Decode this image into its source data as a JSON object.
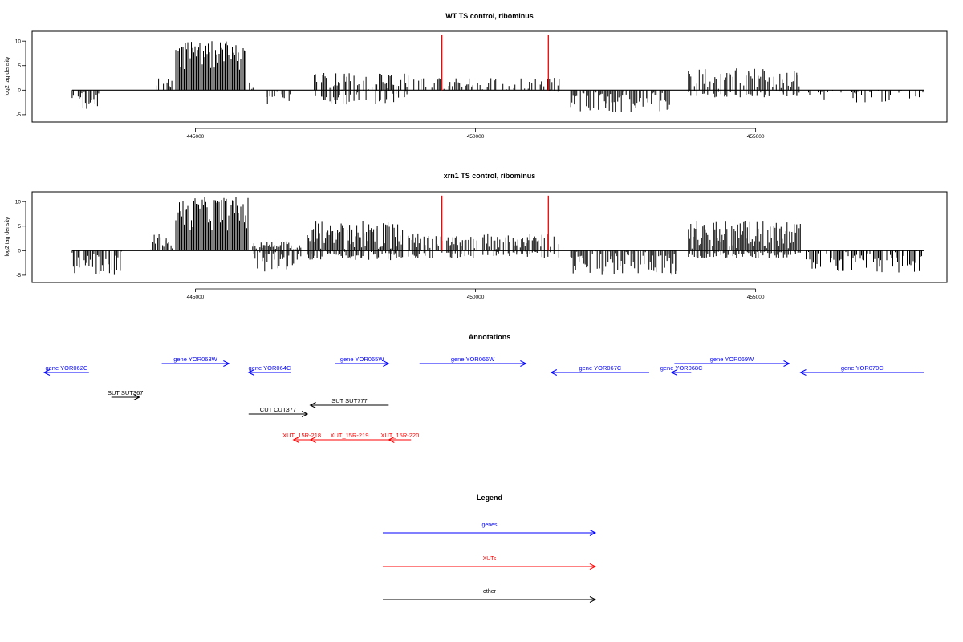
{
  "colors": {
    "gene": "#0000ff",
    "xut": "#ff0000",
    "other": "#000000",
    "marker": "#ff0000",
    "bars": "#000000"
  },
  "chart_data": [
    {
      "type": "bar",
      "title": "WT TS control, ribominus",
      "ylabel": "log2 tag density",
      "ylim": [
        -6,
        11.5
      ],
      "xlim": [
        442100,
        458400
      ],
      "yticks": [
        -5,
        0,
        5,
        10
      ],
      "xticks": [
        445000,
        450000,
        455000
      ],
      "xtick_labels": [
        "445000",
        "450000",
        "455000"
      ],
      "markers": [
        449400,
        451300
      ],
      "segments": [
        {
          "from": 442800,
          "to": 443300,
          "pos_max": 0,
          "neg_max": 4,
          "density": 0.8
        },
        {
          "from": 444300,
          "to": 444600,
          "pos_max": 2.5,
          "neg_max": 0,
          "density": 0.4
        },
        {
          "from": 444650,
          "to": 445900,
          "pos_max": 10,
          "neg_max": 0,
          "density": 1,
          "floor": 4
        },
        {
          "from": 445900,
          "to": 446050,
          "pos_max": 2,
          "neg_max": 0,
          "density": 0.6
        },
        {
          "from": 446200,
          "to": 446700,
          "pos_max": 0,
          "neg_max": 3,
          "density": 0.6
        },
        {
          "from": 447100,
          "to": 448800,
          "pos_max": 3.5,
          "neg_max": 3,
          "density": 0.6
        },
        {
          "from": 448900,
          "to": 451300,
          "pos_max": 2.5,
          "neg_max": 0,
          "density": 0.4
        },
        {
          "from": 451300,
          "to": 451500,
          "pos_max": 2.5,
          "neg_max": 0.5,
          "density": 0.7
        },
        {
          "from": 451700,
          "to": 453500,
          "pos_max": 0,
          "neg_max": 4.5,
          "density": 1
        },
        {
          "from": 453800,
          "to": 455800,
          "pos_max": 4.5,
          "neg_max": 1.5,
          "density": 0.6
        },
        {
          "from": 455900,
          "to": 458000,
          "pos_max": 0,
          "neg_max": 2.5,
          "density": 0.45
        }
      ]
    },
    {
      "type": "bar",
      "title": "xrn1 TS control, ribominus",
      "ylabel": "log2 tag density",
      "ylim": [
        -6,
        11.5
      ],
      "xlim": [
        442100,
        458400
      ],
      "yticks": [
        -5,
        0,
        5,
        10
      ],
      "xticks": [
        445000,
        450000,
        455000
      ],
      "xtick_labels": [
        "445000",
        "450000",
        "455000"
      ],
      "markers": [
        449400,
        451300
      ],
      "segments": [
        {
          "from": 442800,
          "to": 443700,
          "pos_max": 0,
          "neg_max": 5,
          "density": 0.9
        },
        {
          "from": 444200,
          "to": 444600,
          "pos_max": 3.5,
          "neg_max": 0,
          "density": 0.8
        },
        {
          "from": 444650,
          "to": 445950,
          "pos_max": 11,
          "neg_max": 0,
          "density": 1,
          "floor": 4
        },
        {
          "from": 446000,
          "to": 446900,
          "pos_max": 2,
          "neg_max": 4.5,
          "density": 0.9
        },
        {
          "from": 447000,
          "to": 448700,
          "pos_max": 6,
          "neg_max": 2,
          "density": 1
        },
        {
          "from": 448800,
          "to": 451500,
          "pos_max": 3.5,
          "neg_max": 1.5,
          "density": 0.7
        },
        {
          "from": 451700,
          "to": 453600,
          "pos_max": 0,
          "neg_max": 5,
          "density": 1
        },
        {
          "from": 453800,
          "to": 455800,
          "pos_max": 6,
          "neg_max": 1.5,
          "density": 0.9
        },
        {
          "from": 455900,
          "to": 458000,
          "pos_max": 0,
          "neg_max": 4.5,
          "density": 0.9
        }
      ]
    }
  ],
  "annotations": {
    "title": "Annotations",
    "items": [
      {
        "label": "gene YOR062C",
        "kind": "gene",
        "start": 442300,
        "end": 443100,
        "dir": "left",
        "row": 1
      },
      {
        "label": "gene YOR063W",
        "kind": "gene",
        "start": 444400,
        "end": 445600,
        "dir": "right",
        "row": 0
      },
      {
        "label": "gene YOR064C",
        "kind": "gene",
        "start": 445950,
        "end": 446700,
        "dir": "left",
        "row": 1
      },
      {
        "label": "gene YOR065W",
        "kind": "gene",
        "start": 447500,
        "end": 448450,
        "dir": "right",
        "row": 0
      },
      {
        "label": "gene YOR066W",
        "kind": "gene",
        "start": 449000,
        "end": 450900,
        "dir": "right",
        "row": 0
      },
      {
        "label": "gene YOR067C",
        "kind": "gene",
        "start": 451350,
        "end": 453100,
        "dir": "left",
        "row": 1
      },
      {
        "label": "gene YOR068C",
        "kind": "gene",
        "start": 453500,
        "end": 453850,
        "dir": "left",
        "row": 1
      },
      {
        "label": "gene YOR069W",
        "kind": "gene",
        "start": 453550,
        "end": 455600,
        "dir": "right",
        "row": 0
      },
      {
        "label": "gene YOR070C",
        "kind": "gene",
        "start": 455800,
        "end": 458000,
        "dir": "left",
        "row": 1
      },
      {
        "label": "SUT SUT367",
        "kind": "other",
        "start": 443500,
        "end": 444000,
        "dir": "right",
        "row": 3
      },
      {
        "label": "SUT SUT777",
        "kind": "other",
        "start": 447050,
        "end": 448450,
        "dir": "left",
        "row": 4
      },
      {
        "label": "CUT CUT377",
        "kind": "other",
        "start": 445950,
        "end": 447000,
        "dir": "right",
        "row": 5
      },
      {
        "label": "XUT_15R-218",
        "kind": "xut",
        "start": 446750,
        "end": 447050,
        "dir": "left",
        "row": 7
      },
      {
        "label": "XUT_15R-219",
        "kind": "xut",
        "start": 447050,
        "end": 448450,
        "dir": "left",
        "row": 7
      },
      {
        "label": "XUT_15R-220",
        "kind": "xut",
        "start": 448450,
        "end": 448850,
        "dir": "left",
        "row": 7
      }
    ]
  },
  "legend": {
    "title": "Legend",
    "items": [
      {
        "label": "genes",
        "kind": "gene"
      },
      {
        "label": "XUTs",
        "kind": "xut"
      },
      {
        "label": "other",
        "kind": "other"
      }
    ]
  }
}
